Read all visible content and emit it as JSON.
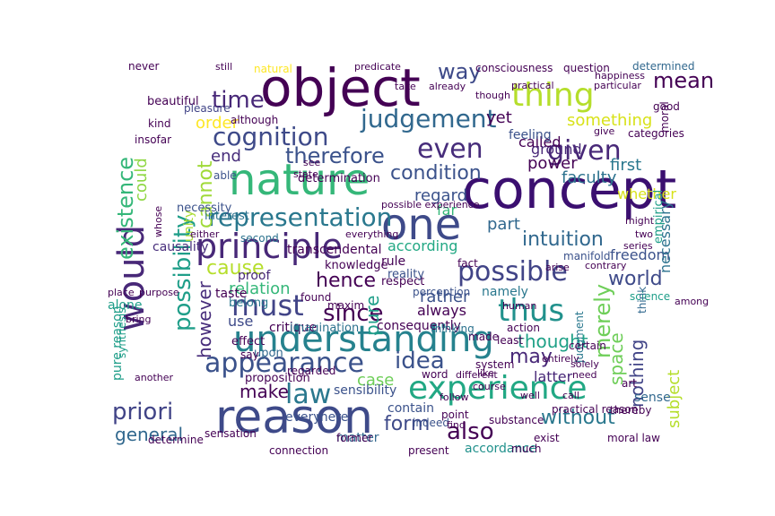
{
  "word_cloud": {
    "words": [
      {
        "text": "concept",
        "color": "#3b0f70"
      },
      {
        "text": "object",
        "color": "#440154"
      },
      {
        "text": "reason",
        "color": "#3e4a89"
      },
      {
        "text": "nature",
        "color": "#35b779"
      },
      {
        "text": "one",
        "color": "#3e4a89"
      },
      {
        "text": "understanding",
        "color": "#26828e"
      },
      {
        "text": "principle",
        "color": "#482878"
      },
      {
        "text": "would",
        "color": "#482878"
      },
      {
        "text": "experience",
        "color": "#22a884"
      },
      {
        "text": "thing",
        "color": "#b5de2b"
      },
      {
        "text": "possible",
        "color": "#414487"
      },
      {
        "text": "appearance",
        "color": "#3b528b"
      },
      {
        "text": "representation",
        "color": "#2a788e"
      },
      {
        "text": "must",
        "color": "#414487"
      },
      {
        "text": "thus",
        "color": "#21918c"
      },
      {
        "text": "cognition",
        "color": "#3e4a89"
      },
      {
        "text": "judgement",
        "color": "#31688e"
      },
      {
        "text": "given",
        "color": "#482878"
      },
      {
        "text": "even",
        "color": "#472d7b"
      },
      {
        "text": "law",
        "color": "#2a788e"
      },
      {
        "text": "therefore",
        "color": "#3b528b"
      },
      {
        "text": "existence",
        "color": "#35b779"
      },
      {
        "text": "possibility",
        "color": "#1f9e89"
      },
      {
        "text": "cannot",
        "color": "#a0da39"
      },
      {
        "text": "time",
        "color": "#482878"
      },
      {
        "text": "since",
        "color": "#440154"
      },
      {
        "text": "idea",
        "color": "#3b528b"
      },
      {
        "text": "also",
        "color": "#440154"
      },
      {
        "text": "merely",
        "color": "#6ece58"
      },
      {
        "text": "way",
        "color": "#3e4a89"
      },
      {
        "text": "intuition",
        "color": "#31688e"
      },
      {
        "text": "hence",
        "color": "#440154"
      },
      {
        "text": "condition",
        "color": "#3b528b"
      },
      {
        "text": "priori",
        "color": "#414487"
      },
      {
        "text": "form",
        "color": "#3e4a89"
      },
      {
        "text": "without",
        "color": "#2a788e"
      },
      {
        "text": "world",
        "color": "#3e4a89"
      },
      {
        "text": "however",
        "color": "#472d7b"
      },
      {
        "text": "cause",
        "color": "#b5de2b"
      },
      {
        "text": "mean",
        "color": "#440154"
      },
      {
        "text": "may",
        "color": "#482878"
      },
      {
        "text": "nothing",
        "color": "#414487"
      },
      {
        "text": "space",
        "color": "#6ece58"
      },
      {
        "text": "general",
        "color": "#31688e"
      },
      {
        "text": "subject",
        "color": "#b5de2b"
      },
      {
        "text": "make",
        "color": "#440154"
      },
      {
        "text": "case",
        "color": "#6ece58"
      },
      {
        "text": "pure",
        "color": "#1f9e89"
      },
      {
        "text": "thought",
        "color": "#1fa187"
      },
      {
        "text": "relation",
        "color": "#35b779"
      },
      {
        "text": "could",
        "color": "#8fd744"
      },
      {
        "text": "end",
        "color": "#472d7b"
      },
      {
        "text": "regard",
        "color": "#3b528b"
      },
      {
        "text": "order",
        "color": "#fde725"
      },
      {
        "text": "part",
        "color": "#31688e"
      },
      {
        "text": "power",
        "color": "#440154"
      },
      {
        "text": "faculty",
        "color": "#2c728e"
      },
      {
        "text": "yet",
        "color": "#440154"
      },
      {
        "text": "something",
        "color": "#d8e219"
      },
      {
        "text": "ground",
        "color": "#482878"
      },
      {
        "text": "called",
        "color": "#440154"
      },
      {
        "text": "first",
        "color": "#2a788e"
      },
      {
        "text": "rather",
        "color": "#3b528b"
      },
      {
        "text": "latter",
        "color": "#482878"
      },
      {
        "text": "use",
        "color": "#3e4a89"
      },
      {
        "text": "always",
        "color": "#440154"
      },
      {
        "text": "according",
        "color": "#22a884"
      },
      {
        "text": "namely",
        "color": "#2a788e"
      },
      {
        "text": "freedom",
        "color": "#3b528b"
      },
      {
        "text": "necessary",
        "color": "#2c728e"
      },
      {
        "text": "whether",
        "color": "#d8e219"
      },
      {
        "text": "far",
        "color": "#35b779"
      },
      {
        "text": "causality",
        "color": "#472d7b"
      },
      {
        "text": "unity",
        "color": "#aadc32"
      },
      {
        "text": "transcendental",
        "color": "#440154"
      },
      {
        "text": "sense",
        "color": "#31688e"
      },
      {
        "text": "matter",
        "color": "#31688e"
      },
      {
        "text": "rule",
        "color": "#440154"
      },
      {
        "text": "feeling",
        "color": "#3b528b"
      },
      {
        "text": "critique",
        "color": "#440154"
      },
      {
        "text": "taste",
        "color": "#440154"
      },
      {
        "text": "proof",
        "color": "#482878"
      },
      {
        "text": "mere",
        "color": "#3b528b"
      },
      {
        "text": "every",
        "color": "#3b528b"
      },
      {
        "text": "accordance",
        "color": "#21918c"
      },
      {
        "text": "pure reason",
        "color": "#1f9e89"
      },
      {
        "text": "alone",
        "color": "#1f9e89"
      },
      {
        "text": "belong",
        "color": "#2a788e"
      },
      {
        "text": "effect",
        "color": "#440154"
      },
      {
        "text": "upon",
        "color": "#31688e"
      },
      {
        "text": "proposition",
        "color": "#440154"
      },
      {
        "text": "sensibility",
        "color": "#3b528b"
      },
      {
        "text": "contain",
        "color": "#3b528b"
      },
      {
        "text": "consequently",
        "color": "#440154"
      },
      {
        "text": "imagination",
        "color": "#2c728e"
      },
      {
        "text": "knowledge",
        "color": "#440154"
      },
      {
        "text": "respect",
        "color": "#440154"
      },
      {
        "text": "reality",
        "color": "#3b528b"
      },
      {
        "text": "determination",
        "color": "#440154"
      },
      {
        "text": "interest",
        "color": "#2c728e"
      },
      {
        "text": "necessity",
        "color": "#3b528b"
      },
      {
        "text": "beautiful",
        "color": "#440154"
      },
      {
        "text": "pleasure",
        "color": "#414487"
      },
      {
        "text": "although",
        "color": "#440154"
      },
      {
        "text": "natural",
        "color": "#fde725"
      },
      {
        "text": "consciousness",
        "color": "#440154"
      },
      {
        "text": "determined",
        "color": "#31688e"
      },
      {
        "text": "question",
        "color": "#440154"
      },
      {
        "text": "good",
        "color": "#440154"
      },
      {
        "text": "categories",
        "color": "#440154"
      },
      {
        "text": "moral",
        "color": "#440154"
      },
      {
        "text": "empirical",
        "color": "#1f9e89"
      },
      {
        "text": "science",
        "color": "#1f9e89"
      },
      {
        "text": "manifold",
        "color": "#3b528b"
      },
      {
        "text": "judgment",
        "color": "#2a788e"
      },
      {
        "text": "certain",
        "color": "#440154"
      },
      {
        "text": "think",
        "color": "#31688e"
      },
      {
        "text": "art",
        "color": "#440154"
      },
      {
        "text": "moral law",
        "color": "#440154"
      },
      {
        "text": "thereby",
        "color": "#440154"
      },
      {
        "text": "practical reason",
        "color": "#440154"
      },
      {
        "text": "substance",
        "color": "#440154"
      },
      {
        "text": "exist",
        "color": "#440154"
      },
      {
        "text": "indeed",
        "color": "#3b528b"
      },
      {
        "text": "point",
        "color": "#440154"
      },
      {
        "text": "system",
        "color": "#440154"
      },
      {
        "text": "word",
        "color": "#440154"
      },
      {
        "text": "synthesis",
        "color": "#1f9e89"
      },
      {
        "text": "determine",
        "color": "#440154"
      },
      {
        "text": "sensation",
        "color": "#440154"
      },
      {
        "text": "connection",
        "color": "#440154"
      },
      {
        "text": "former",
        "color": "#440154"
      },
      {
        "text": "regarded",
        "color": "#440154"
      },
      {
        "text": "present",
        "color": "#440154"
      },
      {
        "text": "much",
        "color": "#440154"
      },
      {
        "text": "never",
        "color": "#440154"
      },
      {
        "text": "kind",
        "color": "#440154"
      },
      {
        "text": "insofar",
        "color": "#440154"
      },
      {
        "text": "able",
        "color": "#3b528b"
      },
      {
        "text": "second",
        "color": "#2c728e"
      },
      {
        "text": "either",
        "color": "#440154"
      },
      {
        "text": "everything",
        "color": "#440154"
      },
      {
        "text": "fact",
        "color": "#440154"
      },
      {
        "text": "action",
        "color": "#440154"
      },
      {
        "text": "least",
        "color": "#440154"
      },
      {
        "text": "made",
        "color": "#440154"
      },
      {
        "text": "thinking",
        "color": "#2c728e"
      },
      {
        "text": "perception",
        "color": "#3b528b"
      },
      {
        "text": "maxim",
        "color": "#440154"
      },
      {
        "text": "found",
        "color": "#440154"
      },
      {
        "text": "say",
        "color": "#440154"
      },
      {
        "text": "another",
        "color": "#440154"
      },
      {
        "text": "bring",
        "color": "#440154"
      },
      {
        "text": "place",
        "color": "#440154"
      },
      {
        "text": "purpose",
        "color": "#440154"
      },
      {
        "text": "whose",
        "color": "#440154"
      },
      {
        "text": "follow",
        "color": "#440154"
      },
      {
        "text": "predicate",
        "color": "#440154"
      },
      {
        "text": "still",
        "color": "#440154"
      },
      {
        "text": "already",
        "color": "#440154"
      },
      {
        "text": "state",
        "color": "#440154"
      },
      {
        "text": "see",
        "color": "#440154"
      },
      {
        "text": "course",
        "color": "#440154"
      },
      {
        "text": "well",
        "color": "#440154"
      },
      {
        "text": "find",
        "color": "#440154"
      },
      {
        "text": "call",
        "color": "#440154"
      },
      {
        "text": "like",
        "color": "#440154"
      },
      {
        "text": "different",
        "color": "#440154"
      },
      {
        "text": "human",
        "color": "#440154"
      },
      {
        "text": "arise",
        "color": "#440154"
      },
      {
        "text": "contrary",
        "color": "#440154"
      },
      {
        "text": "series",
        "color": "#440154"
      },
      {
        "text": "might",
        "color": "#440154"
      },
      {
        "text": "give",
        "color": "#440154"
      },
      {
        "text": "practical",
        "color": "#440154"
      },
      {
        "text": "though",
        "color": "#440154"
      },
      {
        "text": "take",
        "color": "#440154"
      },
      {
        "text": "particular",
        "color": "#440154"
      },
      {
        "text": "happiness",
        "color": "#440154"
      },
      {
        "text": "two",
        "color": "#440154"
      },
      {
        "text": "among",
        "color": "#440154"
      },
      {
        "text": "solely",
        "color": "#440154"
      },
      {
        "text": "entirely",
        "color": "#440154"
      },
      {
        "text": "need",
        "color": "#440154"
      },
      {
        "text": "possible experience",
        "color": "#440154"
      }
    ]
  }
}
